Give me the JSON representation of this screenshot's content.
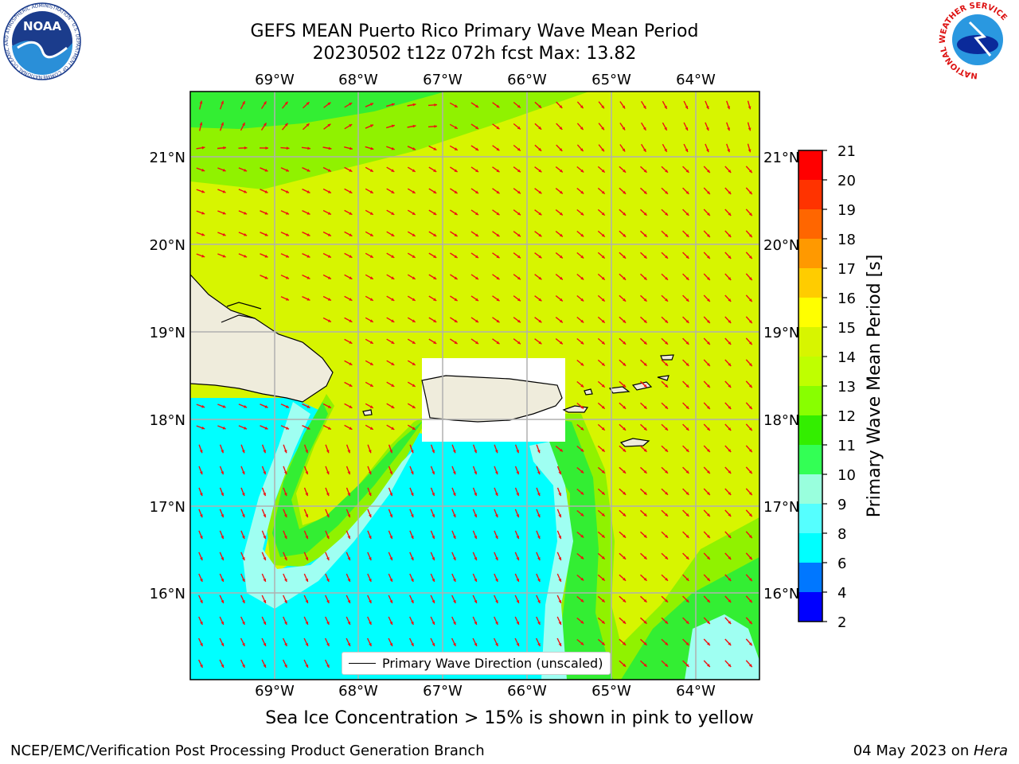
{
  "header": {
    "title_line1": "GEFS MEAN Puerto Rico Primary Wave Mean Period",
    "title_line2": "20230502 t12z 072h fcst   Max: 13.82"
  },
  "logos": {
    "left": {
      "name": "noaa-logo",
      "text": "NOAA",
      "ring_text": "NATIONAL OCEANIC AND ATMOSPHERIC ADMINISTRATION · U.S. DEPARTMENT OF COMMERCE"
    },
    "right": {
      "name": "nws-logo",
      "ring_text": "NATIONAL WEATHER SERVICE"
    }
  },
  "map": {
    "lon_labels": [
      "69°W",
      "68°W",
      "67°W",
      "66°W",
      "65°W",
      "64°W"
    ],
    "lat_labels": [
      "21°N",
      "20°N",
      "19°N",
      "18°N",
      "17°N",
      "16°N"
    ],
    "colors": {
      "ocean_high": "#d7f500",
      "ocean_mid": "#90f200",
      "ocean_green": "#33ee33",
      "ocean_low": "#00ffff",
      "ocean_pale": "#9ffff2",
      "land": "#efecdc",
      "arrow": "#ee1111",
      "grid": "#b0b0b0"
    },
    "legend_label": "Primary Wave Direction (unscaled)"
  },
  "colorbar": {
    "label": "Primary Wave Mean Period [s]",
    "ticks": [
      "21",
      "20",
      "19",
      "18",
      "17",
      "16",
      "15",
      "14",
      "13",
      "12",
      "11",
      "10",
      "9",
      "8",
      "6",
      "4",
      "2"
    ],
    "colors": [
      "#ff0000",
      "#ff3300",
      "#ff6600",
      "#ff9900",
      "#ffcc00",
      "#ffff00",
      "#d7f500",
      "#bfff00",
      "#88ff00",
      "#33ee00",
      "#33ff55",
      "#99ffdd",
      "#55ffff",
      "#00ffff",
      "#0077ff",
      "#0000ff"
    ]
  },
  "footer": {
    "ice_note": "Sea Ice Concentration > 15% is shown in pink to yellow",
    "credit": "NCEP/EMC/Verification Post Processing Product Generation Branch",
    "date_prefix": "04 May 2023 on ",
    "date_machine": "Hera"
  }
}
